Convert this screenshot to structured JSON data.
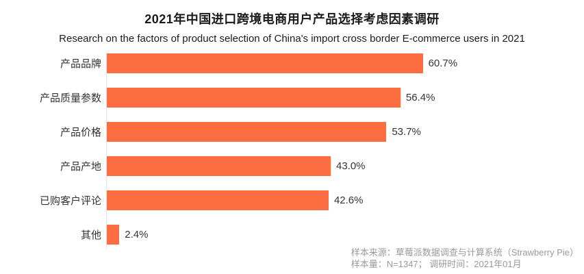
{
  "page": {
    "title": "2021年中国进口跨境电商用户产品选择考虑因素调研",
    "subtitle": "Research on the factors of product selection of China's import cross border E-commerce users in 2021"
  },
  "chart_data": {
    "type": "bar",
    "orientation": "horizontal",
    "title": "2021年中国进口跨境电商用户产品选择考虑因素调研",
    "subtitle": "Research on the factors of product selection of China's import cross border E-commerce users in 2021",
    "categories": [
      "产品品牌",
      "产品质量参数",
      "产品价格",
      "产品产地",
      "已购客户评论",
      "其他"
    ],
    "values": [
      60.7,
      56.4,
      53.7,
      43.0,
      42.6,
      2.4
    ],
    "data_labels": [
      "60.7%",
      "56.4%",
      "53.7%",
      "43.0%",
      "42.6%",
      "2.4%"
    ],
    "unit": "%",
    "xlim": [
      0,
      91
    ],
    "grid": false,
    "legend": false,
    "bar_color": "#fc6e42",
    "axis_line_color": "#e5e5e5",
    "label_color": "#333333"
  },
  "footer": {
    "source_line": "样本来源：草莓派数据调查与计算系统（Strawberry Pie）",
    "sample_line": "样本量：N=1347；  调研时间：2021年01月"
  }
}
